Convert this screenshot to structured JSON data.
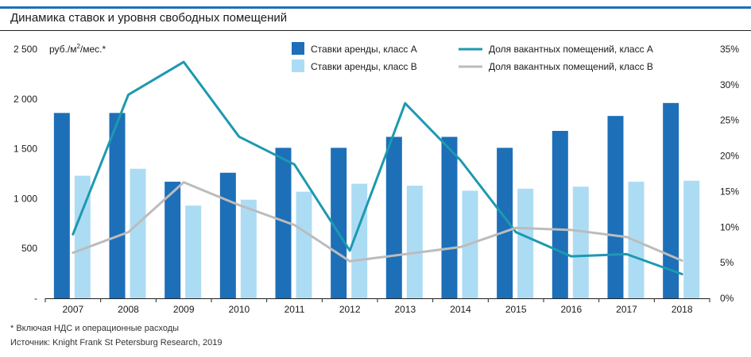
{
  "page": {
    "title": "Динамика ставок и уровня свободных помещений",
    "footnote": "* Включая НДС и операционные расходы",
    "source": "Источник: Knight Frank St Petersburg Research, 2019"
  },
  "colors": {
    "accent": "#1d6fb8",
    "bar_a": "#1d6fb8",
    "bar_b": "#acdcf4",
    "line_a": "#1d99b0",
    "line_b": "#bcbcbc"
  },
  "chart_data": {
    "type": "bar",
    "title": "Динамика ставок и уровня свободных помещений",
    "unit_label": "руб./м",
    "unit_sup": "2",
    "unit_suffix": "/мес.*",
    "categories": [
      "2007",
      "2008",
      "2009",
      "2010",
      "2011",
      "2012",
      "2013",
      "2014",
      "2015",
      "2016",
      "2017",
      "2018"
    ],
    "y_left": {
      "lim": [
        0,
        2500
      ],
      "ticks": [
        0,
        500,
        1000,
        1500,
        2000,
        2500
      ],
      "tick_labels": [
        "-",
        "500",
        "1 000",
        "1 500",
        "2 000",
        "2 500"
      ]
    },
    "y_right": {
      "lim": [
        0,
        35
      ],
      "ticks": [
        0,
        5,
        10,
        15,
        20,
        25,
        30,
        35
      ],
      "tick_labels": [
        "0%",
        "5%",
        "10%",
        "15%",
        "20%",
        "25%",
        "30%",
        "35%"
      ]
    },
    "bar_series": [
      {
        "name": "Ставки аренды, класс А",
        "color": "#1d6fb8",
        "values": [
          1860,
          1860,
          1170,
          1260,
          1510,
          1510,
          1620,
          1620,
          1510,
          1680,
          1830,
          1960
        ]
      },
      {
        "name": "Ставки аренды, класс В",
        "color": "#acdcf4",
        "values": [
          1230,
          1300,
          930,
          990,
          1070,
          1150,
          1130,
          1080,
          1100,
          1120,
          1170,
          1180
        ]
      }
    ],
    "line_series": [
      {
        "name": "Доля вакантных помещений, класс А",
        "color": "#1d99b0",
        "values": [
          9.0,
          28.6,
          33.2,
          22.7,
          18.8,
          6.7,
          27.4,
          19.4,
          9.3,
          5.9,
          6.2,
          3.4
        ]
      },
      {
        "name": "Доля вакантных помещений, класс В",
        "color": "#bcbcbc",
        "values": [
          6.4,
          9.3,
          16.3,
          13.1,
          10.3,
          5.2,
          6.2,
          7.2,
          9.9,
          9.6,
          8.6,
          5.3
        ]
      }
    ],
    "legend_position": "top",
    "grid": false
  }
}
